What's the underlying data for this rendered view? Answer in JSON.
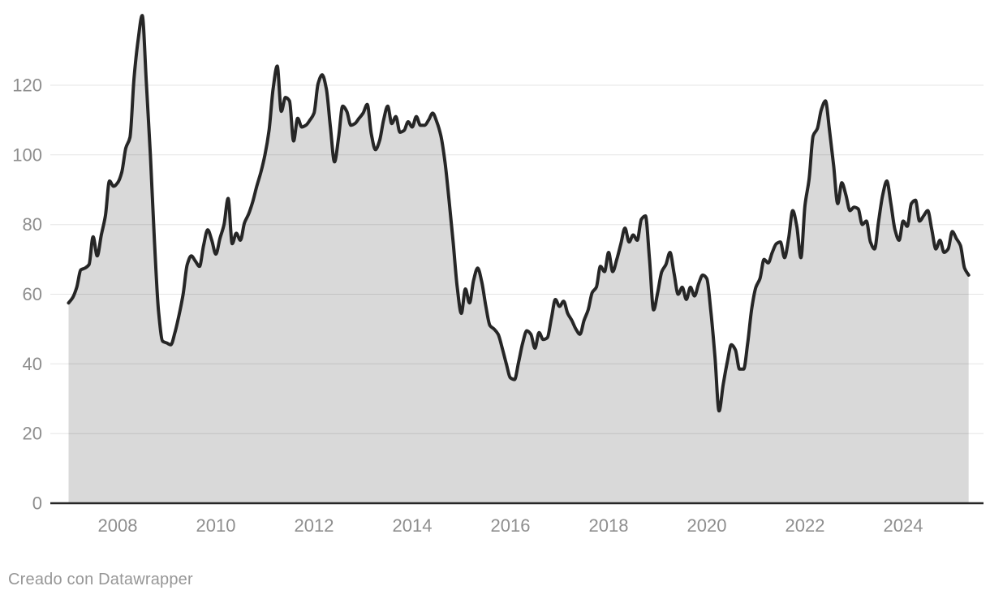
{
  "footer": {
    "text": "Creado con Datawrapper"
  },
  "chart_data": {
    "type": "area",
    "title": "",
    "xlabel": "",
    "ylabel": "",
    "x_range": {
      "start": "2007-01",
      "end": "2025-05",
      "frequency": "monthly"
    },
    "x_tick_labels": [
      "2008",
      "2010",
      "2012",
      "2014",
      "2016",
      "2018",
      "2020",
      "2022",
      "2024"
    ],
    "x_tick_years": [
      2008,
      2010,
      2012,
      2014,
      2016,
      2018,
      2020,
      2022,
      2024
    ],
    "y_tick_labels": [
      "0",
      "20",
      "40",
      "60",
      "80",
      "100",
      "120"
    ],
    "y_ticks": [
      0,
      20,
      40,
      60,
      80,
      100,
      120
    ],
    "ylim": [
      0,
      143
    ],
    "grid": true,
    "legend": "none",
    "series": [
      {
        "name": "",
        "start_year": 2007,
        "values_per_year": 12,
        "values": [
          57.5,
          59,
          62,
          67,
          67.5,
          68.5,
          76.5,
          71,
          77,
          82.5,
          92.5,
          91,
          92,
          95,
          102,
          105,
          122,
          133,
          140,
          121,
          100,
          75,
          55,
          46.5,
          46,
          45.5,
          49,
          54,
          60,
          68.5,
          71,
          69.5,
          68,
          74,
          78.5,
          75.5,
          71.5,
          76,
          80,
          87.5,
          74.5,
          77.5,
          75.5,
          80.5,
          83,
          86.5,
          91,
          95,
          100,
          107,
          119,
          125.5,
          112.5,
          116.5,
          115.5,
          104,
          110.5,
          108,
          108.5,
          110,
          112,
          120.5,
          123,
          119,
          108,
          98,
          105,
          114,
          112.5,
          108.5,
          109,
          110.5,
          112,
          114.5,
          106,
          101.5,
          104,
          110,
          114,
          109,
          111,
          106.5,
          107,
          109.5,
          108,
          111,
          108.5,
          108.5,
          110,
          112,
          109.5,
          105.5,
          98,
          87,
          75,
          62,
          54.5,
          61.5,
          57.5,
          64,
          67.5,
          63.5,
          56.5,
          51,
          50,
          48.5,
          44.5,
          40,
          36,
          35.5,
          40.5,
          46,
          49.5,
          48.5,
          44.5,
          49,
          47,
          47.5,
          53,
          58.5,
          56.5,
          58,
          54.5,
          52.5,
          50,
          48.5,
          52.5,
          55.5,
          60.5,
          62,
          68,
          66.5,
          72,
          66.5,
          70,
          74.5,
          79,
          75,
          77,
          75.5,
          81.5,
          82.5,
          70,
          55.5,
          60.5,
          66.5,
          68.5,
          72,
          66,
          60,
          62,
          58.5,
          62,
          59.5,
          63,
          65.5,
          64.5,
          55,
          42,
          26.5,
          34,
          40.5,
          45.5,
          44,
          38.5,
          38.5,
          46,
          56,
          62,
          64.5,
          70,
          69,
          72,
          74.5,
          75,
          70.5,
          76,
          84,
          79.5,
          70.5,
          85.5,
          93,
          105.5,
          107.5,
          113,
          115.5,
          107,
          97,
          86,
          92,
          88.5,
          84,
          85,
          84.5,
          80,
          81,
          75,
          73,
          81,
          88.5,
          92.5,
          86,
          78.5,
          75.5,
          81,
          79.5,
          86,
          87,
          81,
          82.5,
          84,
          78.5,
          73,
          75.5,
          72,
          73,
          78,
          76,
          74,
          67.5,
          65.5
        ]
      }
    ],
    "colors": {
      "area_fill": "#d9d9d9",
      "line": "#262626",
      "baseline": "#262626",
      "gridline": "rgba(0,0,0,0.1)",
      "axis_text": "#8e8e8e",
      "background": "#ffffff"
    }
  }
}
